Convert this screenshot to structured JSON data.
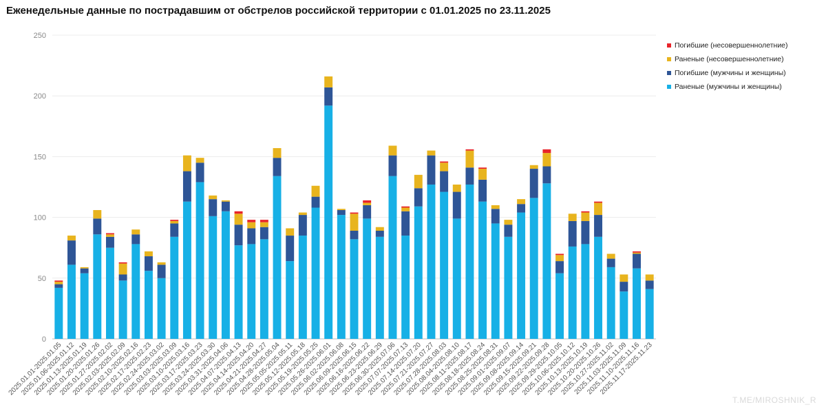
{
  "chart_data": {
    "type": "bar",
    "stacked": true,
    "title": "Еженедельные данные по пострадавшим от обстрелов российской территории с 01.01.2025 по 23.11.2025",
    "xlabel": "",
    "ylabel": "",
    "ylim": [
      0,
      250
    ],
    "yticks": [
      0,
      50,
      100,
      150,
      200,
      250
    ],
    "grid": true,
    "legend_position": "top-right",
    "categories": [
      "2025.01.01-2025.01.05",
      "2025.01.06-2025.01.12",
      "2025.01.13-2025.01.19",
      "2025.01.20-2025.01.26",
      "2025.01.27-2025.02.02",
      "2025.02.03-2025.02.09",
      "2025.02.10-2025.02.16",
      "2025.02.17-2025.02.23",
      "2025.02.24-2025.03.02",
      "2025.03.03-2025.03.09",
      "2025.03.10-2025.03.16",
      "2025.03.17-2025.03.23",
      "2025.03.24-2025.03.30",
      "2025.03.31-2025.04.06",
      "2025.04.07-2025.04.13",
      "2025.04.14-2025.04.20",
      "2025.04.21-2025.04.27",
      "2025.04.28-2025.05.04",
      "2025.05.05-2025.05.11",
      "2025.05.12-2025.05.18",
      "2025.05.19-2025.05.25",
      "2025.05.26-2025.06.01",
      "2025.06.02-2025.06.08",
      "2025.06.09-2025.06.15",
      "2025.06.16-2025.06.22",
      "2025.06.23-2025.06.29",
      "2025.06.30-2025.07.06",
      "2025.07.07-2025.07.13",
      "2025.07.14-2025.07.20",
      "2025.07.21-2025.07.27",
      "2025.07.28-2025.08.03",
      "2025.08.04-2025.08.10",
      "2025.08.11-2025.08.17",
      "2025.08.18-2025.08.24",
      "2025.08.25-2025.08.31",
      "2025.09.01-2025.09.07",
      "2025.09.08-2025.09.14",
      "2025.09.15-2025.09.21",
      "2025.09.22-2025.09.28",
      "2025.09.29-2025.10.05",
      "2025.10.06-2025.10.12",
      "2025.10.13-2025.10.19",
      "2025.10.20-2025.10.26",
      "2025.10.27-2025.11.02",
      "2025.11.03-2025.11.09",
      "2025.11.10-2025.11.16",
      "2025.11.17-2025.11.23"
    ],
    "series": [
      {
        "name": "Раненые (мужчины и женщины)",
        "color": "#17b0e6",
        "values": [
          42,
          61,
          54,
          86,
          75,
          48,
          78,
          56,
          50,
          84,
          113,
          129,
          101,
          105,
          77,
          78,
          82,
          134,
          64,
          85,
          108,
          192,
          102,
          82,
          99,
          84,
          134,
          85,
          109,
          127,
          121,
          99,
          127,
          113,
          95,
          84,
          104,
          116,
          128,
          54,
          76,
          78,
          84,
          59,
          39,
          58,
          41
        ]
      },
      {
        "name": "Погибшие (мужчины и женщины)",
        "color": "#2e5596",
        "values": [
          3,
          20,
          4,
          13,
          9,
          5,
          8,
          12,
          11,
          11,
          25,
          16,
          14,
          8,
          17,
          13,
          10,
          15,
          21,
          17,
          9,
          15,
          4,
          7,
          11,
          5,
          17,
          20,
          15,
          24,
          17,
          22,
          14,
          18,
          12,
          10,
          7,
          24,
          14,
          10,
          21,
          19,
          18,
          7,
          8,
          12,
          7
        ]
      },
      {
        "name": "Раненые (несовершеннолетние)",
        "color": "#e8b41e",
        "values": [
          2,
          4,
          1,
          7,
          2,
          9,
          4,
          4,
          2,
          2,
          13,
          4,
          3,
          1,
          9,
          5,
          4,
          8,
          6,
          2,
          9,
          9,
          1,
          14,
          2,
          3,
          8,
          3,
          11,
          4,
          7,
          6,
          14,
          9,
          3,
          4,
          4,
          3,
          11,
          5,
          6,
          7,
          10,
          4,
          6,
          1,
          5
        ]
      },
      {
        "name": "Погибшие (несовершеннолетние)",
        "color": "#e8242a",
        "values": [
          1,
          0,
          0,
          0,
          1,
          1,
          0,
          0,
          0,
          1,
          0,
          0,
          0,
          0,
          2,
          2,
          2,
          0,
          0,
          0,
          0,
          0,
          0,
          1,
          2,
          0,
          0,
          1,
          0,
          0,
          1,
          0,
          1,
          1,
          0,
          0,
          0,
          0,
          3,
          1,
          0,
          1,
          1,
          0,
          0,
          1,
          0
        ]
      }
    ],
    "legend_order": [
      "Погибшие (несовершеннолетние)",
      "Раненые (несовершеннолетние)",
      "Погибшие (мужчины и женщины)",
      "Раненые (мужчины и женщины)"
    ]
  },
  "watermark": "T.ME/MIROSHNIK_R"
}
